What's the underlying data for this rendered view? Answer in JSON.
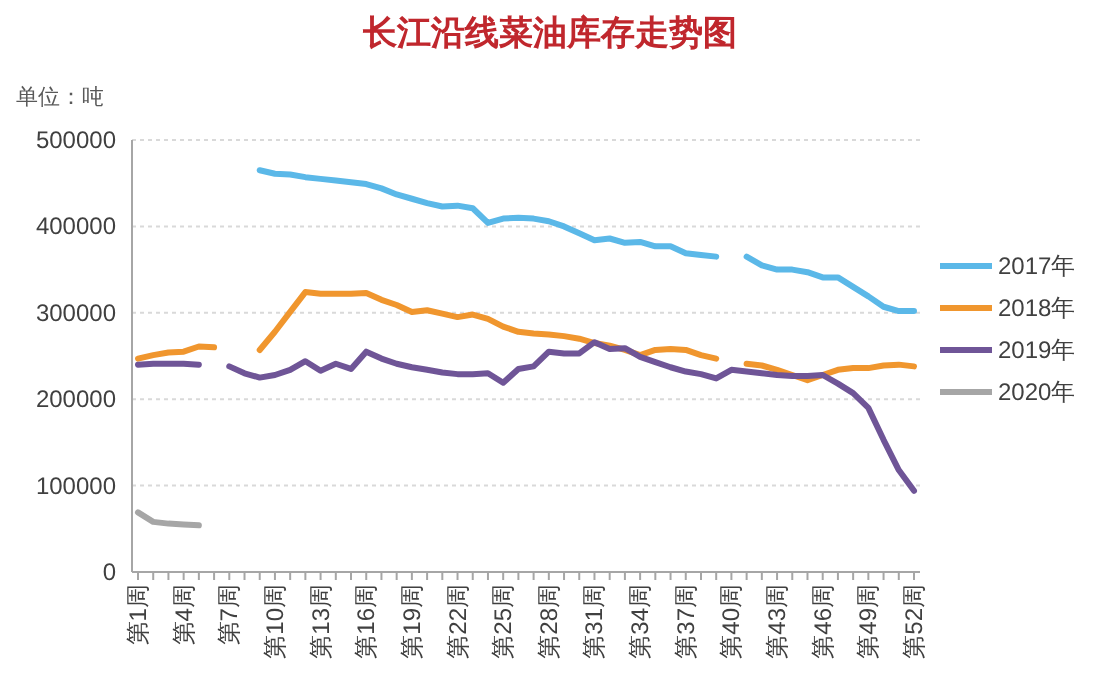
{
  "chart_data": {
    "type": "line",
    "title": "长江沿线菜油库存走势图",
    "annotations": [
      "单位：吨"
    ],
    "categories": [
      "第1周",
      null,
      null,
      "第4周",
      null,
      null,
      "第7周",
      null,
      null,
      "第10周",
      null,
      null,
      "第13周",
      null,
      null,
      "第16周",
      null,
      null,
      "第19周",
      null,
      null,
      "第22周",
      null,
      null,
      "第25周",
      null,
      null,
      "第28周",
      null,
      null,
      "第31周",
      null,
      null,
      "第34周",
      null,
      null,
      "第37周",
      null,
      null,
      "第40周",
      null,
      null,
      "第43周",
      null,
      null,
      "第46周",
      null,
      null,
      "第49周",
      null,
      null,
      "第52周"
    ],
    "ylim": [
      0,
      500000
    ],
    "yticks": [
      0,
      100000,
      200000,
      300000,
      400000,
      500000
    ],
    "grid": "y",
    "legend": "right",
    "line_style": "solid",
    "marker": "none",
    "series": [
      {
        "name": "2017年",
        "color": "#5bb8e8",
        "values": [
          null,
          null,
          null,
          null,
          null,
          null,
          null,
          null,
          465000,
          461000,
          460000,
          457000,
          455000,
          453000,
          451000,
          449000,
          444000,
          437000,
          432000,
          427000,
          423000,
          424000,
          421000,
          404000,
          409000,
          410000,
          409000,
          406000,
          400000,
          392000,
          384000,
          386000,
          381000,
          382000,
          377000,
          377000,
          369000,
          367000,
          365000,
          null,
          365000,
          355000,
          350000,
          350000,
          347000,
          341000,
          341000,
          330000,
          319000,
          307000,
          302000,
          302000
        ]
      },
      {
        "name": "2018年",
        "color": "#f0962e",
        "values": [
          247000,
          251000,
          254000,
          255000,
          261000,
          260000,
          null,
          null,
          257000,
          278000,
          301000,
          324000,
          322000,
          322000,
          322000,
          323000,
          315000,
          309000,
          301000,
          303000,
          299000,
          295000,
          298000,
          293000,
          284000,
          278000,
          276000,
          275000,
          273000,
          270000,
          265000,
          262000,
          257000,
          251000,
          257000,
          258000,
          257000,
          251000,
          247000,
          null,
          241000,
          239000,
          234000,
          228000,
          222000,
          228000,
          234000,
          236000,
          236000,
          239000,
          240000,
          238000
        ]
      },
      {
        "name": "2019年",
        "color": "#6f5597",
        "values": [
          240000,
          241000,
          241000,
          241000,
          240000,
          null,
          238000,
          230000,
          225000,
          228000,
          234000,
          244000,
          233000,
          241000,
          235000,
          255000,
          247000,
          241000,
          237000,
          234000,
          231000,
          229000,
          229000,
          230000,
          219000,
          235000,
          238000,
          255000,
          253000,
          253000,
          266000,
          258000,
          259000,
          249000,
          243000,
          237000,
          232000,
          229000,
          224000,
          234000,
          232000,
          230000,
          228000,
          227000,
          227000,
          228000,
          218000,
          207000,
          190000,
          153000,
          118000,
          94000
        ]
      },
      {
        "name": "2020年",
        "color": "#a6a6a6",
        "values": [
          69000,
          58000,
          56000,
          55000,
          54000,
          null,
          null,
          null,
          null,
          null,
          null,
          null,
          null,
          null,
          null,
          null,
          null,
          null,
          null,
          null,
          null,
          null,
          null,
          null,
          null,
          null,
          null,
          null,
          null,
          null,
          null,
          null,
          null,
          null,
          null,
          null,
          null,
          null,
          null,
          null,
          null,
          null,
          null,
          null,
          null,
          null,
          null,
          null,
          null,
          null,
          null,
          null
        ]
      }
    ]
  }
}
